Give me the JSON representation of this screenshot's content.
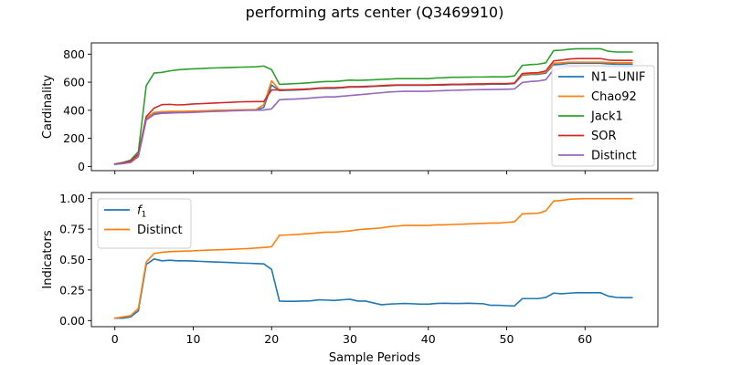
{
  "figure_title": "performing arts center (Q3469910)",
  "chart_data": [
    {
      "type": "line",
      "title": "",
      "xlabel": "",
      "ylabel": "Cardinality",
      "xlim": [
        -3,
        69.3
      ],
      "ylim": [
        -30,
        880
      ],
      "xticks": [
        0,
        10,
        20,
        30,
        40,
        50,
        60
      ],
      "xtick_labels_visible": false,
      "yticks": [
        0,
        200,
        400,
        600,
        800
      ],
      "grid": false,
      "legend_position": "right",
      "x": [
        0,
        1,
        2,
        3,
        4,
        5,
        6,
        7,
        8,
        9,
        10,
        11,
        12,
        13,
        14,
        15,
        16,
        17,
        18,
        19,
        20,
        21,
        22,
        23,
        24,
        25,
        26,
        27,
        28,
        29,
        30,
        31,
        32,
        33,
        34,
        35,
        36,
        37,
        38,
        39,
        40,
        41,
        42,
        43,
        44,
        45,
        46,
        47,
        48,
        49,
        50,
        51,
        52,
        53,
        54,
        55,
        56,
        57,
        58,
        59,
        60,
        61,
        62,
        63,
        64,
        65,
        66
      ],
      "series": [
        {
          "name": "N1−UNIF",
          "color": "#1f77b4",
          "values": [
            15,
            22,
            30,
            75,
            340,
            380,
            385,
            388,
            388,
            390,
            392,
            393,
            394,
            396,
            397,
            398,
            400,
            401,
            402,
            420,
            580,
            540,
            542,
            544,
            546,
            550,
            555,
            556,
            556,
            560,
            565,
            565,
            567,
            570,
            572,
            575,
            578,
            578,
            578,
            578,
            578,
            580,
            580,
            582,
            582,
            583,
            584,
            584,
            586,
            586,
            586,
            590,
            650,
            655,
            656,
            665,
            725,
            728,
            735,
            735,
            735,
            735,
            735,
            730,
            728,
            728,
            728
          ]
        },
        {
          "name": "Chao92",
          "color": "#ff7f0e",
          "values": [
            15,
            22,
            30,
            75,
            345,
            385,
            390,
            392,
            392,
            393,
            395,
            396,
            398,
            400,
            401,
            402,
            403,
            404,
            405,
            440,
            610,
            545,
            546,
            548,
            550,
            553,
            558,
            560,
            560,
            563,
            568,
            568,
            570,
            572,
            575,
            578,
            580,
            580,
            580,
            580,
            580,
            582,
            583,
            585,
            585,
            586,
            587,
            588,
            590,
            590,
            590,
            594,
            655,
            660,
            662,
            672,
            735,
            738,
            742,
            742,
            742,
            742,
            742,
            740,
            738,
            738,
            738
          ]
        },
        {
          "name": "Jack1",
          "color": "#2ca02c",
          "values": [
            18,
            28,
            45,
            105,
            575,
            665,
            670,
            680,
            688,
            692,
            695,
            697,
            700,
            702,
            703,
            705,
            707,
            708,
            710,
            715,
            690,
            585,
            587,
            590,
            593,
            597,
            602,
            605,
            605,
            610,
            615,
            613,
            615,
            617,
            620,
            622,
            625,
            625,
            625,
            625,
            625,
            630,
            632,
            635,
            635,
            636,
            637,
            637,
            638,
            638,
            638,
            645,
            720,
            725,
            728,
            738,
            825,
            828,
            835,
            838,
            838,
            838,
            838,
            820,
            815,
            815,
            815
          ]
        },
        {
          "name": "SOR",
          "color": "#d62728",
          "values": [
            16,
            25,
            38,
            88,
            355,
            415,
            440,
            442,
            438,
            440,
            445,
            447,
            450,
            452,
            455,
            457,
            460,
            461,
            462,
            462,
            545,
            545,
            546,
            548,
            550,
            553,
            558,
            560,
            560,
            563,
            568,
            568,
            570,
            572,
            575,
            578,
            580,
            580,
            580,
            580,
            580,
            582,
            583,
            585,
            585,
            586,
            587,
            588,
            590,
            590,
            590,
            594,
            662,
            666,
            668,
            680,
            752,
            758,
            765,
            768,
            768,
            768,
            768,
            758,
            755,
            755,
            755
          ]
        },
        {
          "name": "Distinct",
          "color": "#9467bd",
          "values": [
            14,
            20,
            28,
            70,
            330,
            370,
            378,
            380,
            382,
            383,
            385,
            388,
            390,
            392,
            394,
            396,
            398,
            399,
            400,
            402,
            410,
            475,
            478,
            480,
            483,
            487,
            492,
            495,
            495,
            500,
            505,
            510,
            515,
            520,
            525,
            530,
            533,
            535,
            535,
            535,
            535,
            538,
            540,
            542,
            543,
            545,
            546,
            547,
            548,
            549,
            550,
            552,
            598,
            605,
            608,
            618,
            690,
            700,
            708,
            712,
            715,
            715,
            715,
            710,
            708,
            708,
            708
          ]
        }
      ]
    },
    {
      "type": "line",
      "title": "",
      "xlabel": "Sample Periods",
      "ylabel": "Indicators",
      "xlim": [
        -3,
        69.3
      ],
      "ylim": [
        -0.05,
        1.05
      ],
      "xticks": [
        0,
        10,
        20,
        30,
        40,
        50,
        60
      ],
      "yticks": [
        0.0,
        0.25,
        0.5,
        0.75,
        1.0
      ],
      "ytick_labels": [
        "0.00",
        "0.25",
        "0.50",
        "0.75",
        "1.00"
      ],
      "grid": false,
      "legend_position": "upper left",
      "x": [
        0,
        1,
        2,
        3,
        4,
        5,
        6,
        7,
        8,
        9,
        10,
        11,
        12,
        13,
        14,
        15,
        16,
        17,
        18,
        19,
        20,
        21,
        22,
        23,
        24,
        25,
        26,
        27,
        28,
        29,
        30,
        31,
        32,
        33,
        34,
        35,
        36,
        37,
        38,
        39,
        40,
        41,
        42,
        43,
        44,
        45,
        46,
        47,
        48,
        49,
        50,
        51,
        52,
        53,
        54,
        55,
        56,
        57,
        58,
        59,
        60,
        61,
        62,
        63,
        64,
        65,
        66
      ],
      "series": [
        {
          "name": "f1",
          "color": "#1f77b4",
          "values": [
            0.02,
            0.02,
            0.03,
            0.08,
            0.46,
            0.505,
            0.49,
            0.495,
            0.49,
            0.49,
            0.488,
            0.485,
            0.483,
            0.48,
            0.478,
            0.475,
            0.472,
            0.47,
            0.468,
            0.465,
            0.42,
            0.16,
            0.158,
            0.158,
            0.16,
            0.162,
            0.17,
            0.168,
            0.165,
            0.17,
            0.175,
            0.16,
            0.16,
            0.145,
            0.13,
            0.135,
            0.138,
            0.14,
            0.138,
            0.135,
            0.135,
            0.14,
            0.142,
            0.14,
            0.14,
            0.142,
            0.14,
            0.138,
            0.125,
            0.125,
            0.122,
            0.12,
            0.18,
            0.18,
            0.18,
            0.19,
            0.225,
            0.22,
            0.225,
            0.228,
            0.228,
            0.228,
            0.228,
            0.2,
            0.19,
            0.188,
            0.188
          ]
        },
        {
          "name": "Distinct",
          "color": "#ff7f0e",
          "values": [
            0.02,
            0.03,
            0.04,
            0.1,
            0.48,
            0.55,
            0.56,
            0.565,
            0.568,
            0.57,
            0.572,
            0.575,
            0.578,
            0.58,
            0.582,
            0.585,
            0.588,
            0.59,
            0.595,
            0.6,
            0.605,
            0.7,
            0.702,
            0.705,
            0.71,
            0.715,
            0.72,
            0.725,
            0.725,
            0.73,
            0.735,
            0.745,
            0.75,
            0.755,
            0.76,
            0.77,
            0.775,
            0.78,
            0.78,
            0.78,
            0.78,
            0.785,
            0.785,
            0.788,
            0.79,
            0.792,
            0.795,
            0.797,
            0.8,
            0.8,
            0.805,
            0.81,
            0.875,
            0.878,
            0.88,
            0.9,
            0.98,
            0.985,
            0.995,
            0.998,
            1.0,
            1.0,
            1.0,
            1.0,
            1.0,
            1.0,
            1.0
          ]
        }
      ]
    }
  ]
}
